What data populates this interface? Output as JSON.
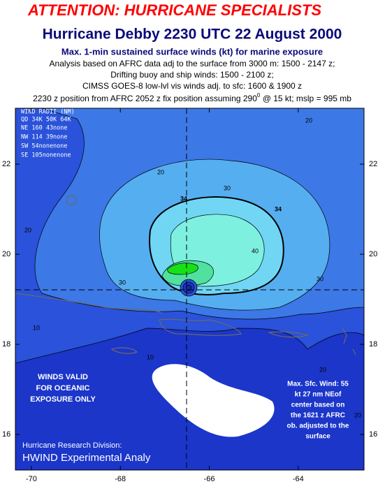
{
  "header": {
    "alert": "ATTENTION: HURRICANE SPECIALISTS",
    "title": "Hurricane Debby 2230 UTC 22 August 2000",
    "subtitle": "Max. 1-min sustained surface winds (kt) for marine exposure",
    "notes": [
      "Analysis based on AFRC data adj to the surface from 3000 m: 1500 - 2147 z;",
      "Drifting buoy and ship winds: 1500 - 2100 z;",
      "CIMSS GOES-8 low-lvl vis winds adj. to sfc: 1600 & 1900 z"
    ],
    "position": [
      "2230 z position from AFRC 2052 z fix position assuming 290",
      "0",
      " @ 15 kt; mslp = 995 mb"
    ]
  },
  "map": {
    "lonlim": [
      -70.36,
      -62.52
    ],
    "latlim": [
      15.21,
      23.24
    ],
    "lon_ticks": [
      -70,
      -68,
      -66,
      -64
    ],
    "lat_ticks": [
      16,
      18,
      20,
      22
    ],
    "wind_radii": [
      "WIND RADII (NM)",
      "QD 34K 50K 64K",
      "NE 160  43none",
      "NW 114  39none",
      "SW  54nonenone",
      "SE 105nonenone"
    ],
    "validity_note": [
      "WINDS VALID",
      "FOR OCEANIC",
      "EXPOSURE ONLY"
    ],
    "max_wind_note": [
      "Max. Sfc. Wind: 55",
      "kt 27 nm NEof",
      "center based on",
      "the 1621 z AFRC",
      "ob. adjusted to the",
      "surface"
    ],
    "credit": [
      "Hurricane Research Division:",
      "HWIND Experimental Analy"
    ],
    "contour_labels": [
      "20",
      "30",
      "34",
      "34",
      "40",
      "30",
      "30",
      "20",
      "20",
      "10",
      "10",
      "20",
      "20"
    ]
  }
}
